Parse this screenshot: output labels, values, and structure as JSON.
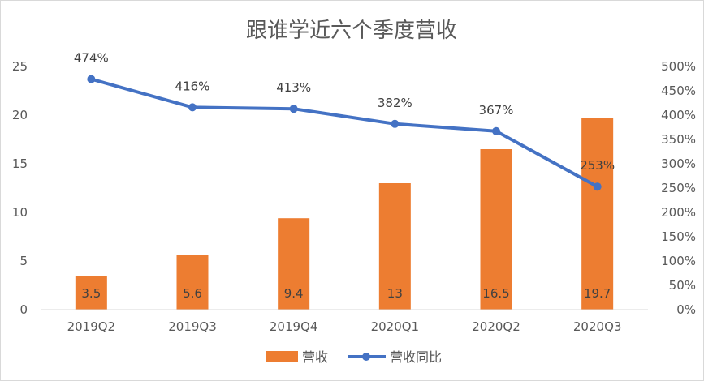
{
  "chart_data": {
    "type": "bar",
    "title": "跟谁学近六个季度营收",
    "categories": [
      "2019Q2",
      "2019Q3",
      "2019Q4",
      "2020Q1",
      "2020Q2",
      "2020Q3"
    ],
    "series": [
      {
        "name": "营收",
        "type": "bar",
        "axis": "left",
        "color": "#ed7d31",
        "values": [
          3.5,
          5.6,
          9.4,
          13,
          16.5,
          19.7
        ],
        "labels": [
          "3.5",
          "5.6",
          "9.4",
          "13",
          "16.5",
          "19.7"
        ]
      },
      {
        "name": "营收同比",
        "type": "line",
        "axis": "right",
        "color": "#4472c4",
        "values": [
          474,
          416,
          413,
          382,
          367,
          253
        ],
        "labels": [
          "474%",
          "416%",
          "413%",
          "382%",
          "367%",
          "253%"
        ]
      }
    ],
    "y_left": {
      "ylim": [
        0,
        25
      ],
      "ticks": [
        "0",
        "5",
        "10",
        "15",
        "20",
        "25"
      ]
    },
    "y_right": {
      "ylim": [
        0,
        500
      ],
      "ticks": [
        "0%",
        "50%",
        "100%",
        "150%",
        "200%",
        "250%",
        "300%",
        "350%",
        "400%",
        "450%",
        "500%"
      ]
    },
    "grid": false,
    "legend": "bottom"
  }
}
